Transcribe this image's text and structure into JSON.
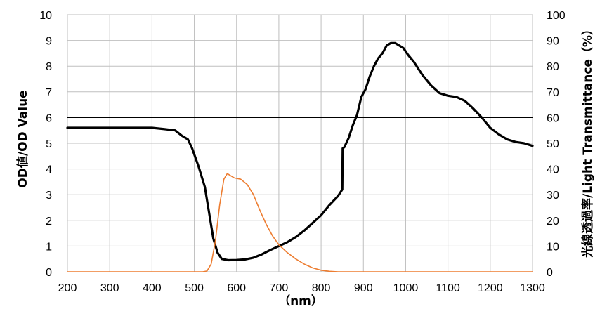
{
  "chart_data": {
    "type": "line",
    "xlabel": "（nm）",
    "ylabel_left": "OD値/OD Value",
    "ylabel_right": "光線透過率/Light Transmittance（%）",
    "xlim": [
      200,
      1300
    ],
    "ylim_left": [
      0,
      10
    ],
    "ylim_right": [
      0,
      100
    ],
    "x_ticks": [
      "200",
      "300",
      "400",
      "500",
      "600",
      "700",
      "800",
      "900",
      "1000",
      "1100",
      "1200",
      "1300"
    ],
    "y_left_ticks": [
      "0",
      "1",
      "2",
      "3",
      "4",
      "5",
      "6",
      "7",
      "8",
      "9",
      "10"
    ],
    "y_right_ticks": [
      "0",
      "10",
      "20",
      "30",
      "40",
      "50",
      "60",
      "70",
      "80",
      "90",
      "100"
    ],
    "grid": true,
    "reference_line": {
      "axis": "left",
      "y": 6
    },
    "colors": {
      "od": "#000000",
      "transmittance": "#ED7D31",
      "grid": "#BFBFBF",
      "reference": "#000000"
    },
    "series": [
      {
        "key": "od",
        "axis": "left",
        "points": [
          [
            200,
            5.6
          ],
          [
            300,
            5.6
          ],
          [
            400,
            5.6
          ],
          [
            430,
            5.55
          ],
          [
            455,
            5.5
          ],
          [
            470,
            5.3
          ],
          [
            485,
            5.15
          ],
          [
            495,
            4.8
          ],
          [
            510,
            4.1
          ],
          [
            525,
            3.3
          ],
          [
            535,
            2.3
          ],
          [
            545,
            1.3
          ],
          [
            555,
            0.75
          ],
          [
            565,
            0.5
          ],
          [
            580,
            0.45
          ],
          [
            600,
            0.46
          ],
          [
            620,
            0.48
          ],
          [
            640,
            0.55
          ],
          [
            660,
            0.68
          ],
          [
            680,
            0.85
          ],
          [
            700,
            1.0
          ],
          [
            720,
            1.15
          ],
          [
            740,
            1.35
          ],
          [
            760,
            1.6
          ],
          [
            780,
            1.9
          ],
          [
            800,
            2.2
          ],
          [
            820,
            2.6
          ],
          [
            840,
            2.95
          ],
          [
            850,
            3.2
          ],
          [
            851,
            4.8
          ],
          [
            855,
            4.85
          ],
          [
            865,
            5.2
          ],
          [
            875,
            5.7
          ],
          [
            885,
            6.1
          ],
          [
            895,
            6.8
          ],
          [
            905,
            7.1
          ],
          [
            915,
            7.6
          ],
          [
            925,
            8.0
          ],
          [
            935,
            8.3
          ],
          [
            945,
            8.5
          ],
          [
            955,
            8.8
          ],
          [
            965,
            8.9
          ],
          [
            975,
            8.9
          ],
          [
            985,
            8.8
          ],
          [
            995,
            8.7
          ],
          [
            1005,
            8.45
          ],
          [
            1020,
            8.15
          ],
          [
            1040,
            7.65
          ],
          [
            1060,
            7.25
          ],
          [
            1080,
            6.95
          ],
          [
            1100,
            6.85
          ],
          [
            1120,
            6.8
          ],
          [
            1140,
            6.65
          ],
          [
            1160,
            6.35
          ],
          [
            1180,
            6.0
          ],
          [
            1200,
            5.6
          ],
          [
            1220,
            5.35
          ],
          [
            1240,
            5.15
          ],
          [
            1260,
            5.05
          ],
          [
            1280,
            5.0
          ],
          [
            1300,
            4.9
          ]
        ]
      },
      {
        "key": "transmittance",
        "axis": "right",
        "points": [
          [
            200,
            0
          ],
          [
            520,
            0
          ],
          [
            530,
            0.3
          ],
          [
            540,
            3
          ],
          [
            550,
            12
          ],
          [
            560,
            26
          ],
          [
            570,
            36
          ],
          [
            578,
            38.2
          ],
          [
            585,
            37.5
          ],
          [
            595,
            36.5
          ],
          [
            610,
            36
          ],
          [
            625,
            34
          ],
          [
            640,
            30
          ],
          [
            655,
            24
          ],
          [
            670,
            18.5
          ],
          [
            685,
            14
          ],
          [
            700,
            10.5
          ],
          [
            720,
            7.5
          ],
          [
            740,
            5
          ],
          [
            760,
            3
          ],
          [
            780,
            1.5
          ],
          [
            800,
            0.6
          ],
          [
            820,
            0.2
          ],
          [
            840,
            0
          ],
          [
            1300,
            0
          ]
        ]
      }
    ]
  }
}
